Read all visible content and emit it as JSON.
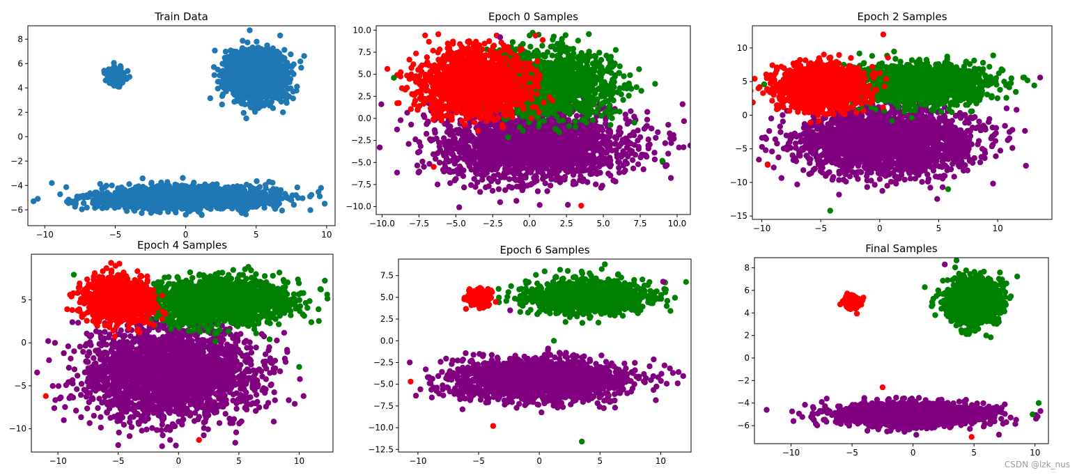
{
  "watermark": "CSDN @lzk_nus",
  "colors": {
    "train": "#1f77b4",
    "red": "#ff0000",
    "green": "#008000",
    "purple": "#800080",
    "axis": "#000000",
    "background": "#ffffff"
  },
  "chart_data": [
    {
      "type": "scatter",
      "title": "Train Data",
      "xlim": [
        -11.2,
        10.6
      ],
      "ylim": [
        -7.3,
        9.1
      ],
      "xticks": [
        -10,
        -5,
        0,
        5,
        10
      ],
      "yticks": [
        -6,
        -4,
        -2,
        0,
        2,
        4,
        6,
        8
      ],
      "series": [
        {
          "color": "#1f77b4",
          "clusters": [
            {
              "center": [
                -4.9,
                5.0
              ],
              "spread": [
                0.35,
                0.35
              ],
              "n": 120
            },
            {
              "center": [
                5.0,
                5.0
              ],
              "spread": [
                1.0,
                1.0
              ],
              "n": 1800
            },
            {
              "center": [
                0.0,
                -5.0
              ],
              "spread": [
                3.2,
                0.45
              ],
              "n": 1800
            }
          ]
        }
      ],
      "outliers": [
        [
          -10.8,
          -5.3
        ],
        [
          -10.5,
          -5.1
        ],
        [
          9.6,
          -4.2
        ],
        [
          6.7,
          8.3
        ],
        [
          4.3,
          1.5
        ],
        [
          -9.5,
          -3.8
        ],
        [
          6.9,
          2.0
        ],
        [
          0.0,
          -6.4
        ]
      ]
    },
    {
      "type": "scatter",
      "title": "Epoch 0 Samples",
      "xlim": [
        -10.4,
        10.9
      ],
      "ylim": [
        -10.9,
        10.5
      ],
      "xticks": [
        -10.0,
        -7.5,
        -5.0,
        -2.5,
        0.0,
        2.5,
        5.0,
        7.5,
        10.0
      ],
      "yticks": [
        -10.0,
        -7.5,
        -5.0,
        -2.5,
        0.0,
        2.5,
        5.0,
        7.5,
        10.0
      ],
      "series": [
        {
          "color": "#800080",
          "clusters": [
            {
              "center": [
                0.3,
                -3.0
              ],
              "spread": [
                3.2,
                2.0
              ],
              "n": 2200
            }
          ]
        },
        {
          "color": "#008000",
          "clusters": [
            {
              "center": [
                1.5,
                4.0
              ],
              "spread": [
                2.2,
                1.8
              ],
              "n": 1400
            }
          ]
        },
        {
          "color": "#ff0000",
          "clusters": [
            {
              "center": [
                -3.8,
                4.0
              ],
              "spread": [
                1.8,
                1.8
              ],
              "n": 1400
            }
          ]
        }
      ],
      "outliers": [
        [
          9.6,
          -2.8
        ],
        [
          -9.2,
          4.6
        ],
        [
          3.5,
          -9.9
        ],
        [
          -2.0,
          9.2
        ],
        [
          0.0,
          9.4
        ],
        [
          -6.5,
          -5.5
        ],
        [
          -2.0,
          -9.5
        ],
        [
          9.0,
          -4.8
        ]
      ]
    },
    {
      "type": "scatter",
      "title": "Epoch 2 Samples",
      "xlim": [
        -10.8,
        14.6
      ],
      "ylim": [
        -15.5,
        13.3
      ],
      "xticks": [
        -10,
        -5,
        0,
        5,
        10
      ],
      "yticks": [
        -15,
        -10,
        -5,
        0,
        5,
        10
      ],
      "series": [
        {
          "color": "#800080",
          "clusters": [
            {
              "center": [
                0.5,
                -4.0
              ],
              "spread": [
                3.6,
                2.4
              ],
              "n": 2400
            }
          ]
        },
        {
          "color": "#008000",
          "clusters": [
            {
              "center": [
                3.5,
                4.6
              ],
              "spread": [
                2.8,
                1.5
              ],
              "n": 1400
            }
          ]
        },
        {
          "color": "#ff0000",
          "clusters": [
            {
              "center": [
                -5.0,
                4.2
              ],
              "spread": [
                1.8,
                1.6
              ],
              "n": 1400
            }
          ]
        }
      ],
      "outliers": [
        [
          13.6,
          5.6
        ],
        [
          -4.2,
          -14.2
        ],
        [
          0.3,
          12.0
        ],
        [
          11.6,
          0.8
        ],
        [
          -9.8,
          4.6
        ],
        [
          -9.5,
          -7.4
        ],
        [
          11.0,
          -2.5
        ],
        [
          5.8,
          -11.0
        ]
      ]
    },
    {
      "type": "scatter",
      "title": "Epoch 4 Samples",
      "xlim": [
        -12.2,
        12.8
      ],
      "ylim": [
        -12.7,
        10.3
      ],
      "xticks": [
        -10,
        -5,
        0,
        5,
        10
      ],
      "yticks": [
        -10,
        -5,
        0,
        5
      ],
      "series": [
        {
          "color": "#800080",
          "clusters": [
            {
              "center": [
                -0.5,
                -3.5
              ],
              "spread": [
                3.4,
                2.6
              ],
              "n": 2600
            }
          ]
        },
        {
          "color": "#008000",
          "clusters": [
            {
              "center": [
                3.3,
                4.8
              ],
              "spread": [
                2.9,
                1.3
              ],
              "n": 1700
            }
          ]
        },
        {
          "color": "#ff0000",
          "clusters": [
            {
              "center": [
                -5.0,
                5.0
              ],
              "spread": [
                1.3,
                1.2
              ],
              "n": 1200
            }
          ]
        }
      ],
      "outliers": [
        [
          -5.0,
          -11.9
        ],
        [
          11.8,
          6.2
        ],
        [
          -11.0,
          -6.2
        ],
        [
          -10.8,
          0.2
        ],
        [
          10.0,
          -2.8
        ],
        [
          1.7,
          -11.3
        ],
        [
          -0.7,
          -11.3
        ],
        [
          10.3,
          3.3
        ]
      ]
    },
    {
      "type": "scatter",
      "title": "Epoch 6 Samples",
      "xlim": [
        -11.6,
        12.5
      ],
      "ylim": [
        -12.8,
        9.4
      ],
      "xticks": [
        -10,
        -5,
        0,
        5,
        10
      ],
      "yticks": [
        -12.5,
        -10.0,
        -7.5,
        -5.0,
        -2.5,
        0.0,
        2.5,
        5.0,
        7.5
      ],
      "series": [
        {
          "color": "#800080",
          "clusters": [
            {
              "center": [
                0.0,
                -4.5
              ],
              "spread": [
                3.4,
                1.2
              ],
              "n": 2000
            }
          ]
        },
        {
          "color": "#008000",
          "clusters": [
            {
              "center": [
                4.0,
                5.0
              ],
              "spread": [
                2.3,
                0.9
              ],
              "n": 1300
            }
          ]
        },
        {
          "color": "#ff0000",
          "clusters": [
            {
              "center": [
                -5.0,
                5.0
              ],
              "spread": [
                0.45,
                0.45
              ],
              "n": 250
            }
          ]
        }
      ],
      "outliers": [
        [
          11.4,
          -4.9
        ],
        [
          3.5,
          -11.6
        ],
        [
          -10.6,
          -4.7
        ],
        [
          -2.4,
          3.5
        ],
        [
          1.2,
          0.0
        ],
        [
          -3.8,
          -9.8
        ],
        [
          10.2,
          6.8
        ],
        [
          5.4,
          8.8
        ]
      ]
    },
    {
      "type": "scatter",
      "title": "Final Samples",
      "xlim": [
        -13.0,
        11.1
      ],
      "ylim": [
        -7.6,
        8.9
      ],
      "xticks": [
        -10,
        -5,
        0,
        5,
        10
      ],
      "yticks": [
        -6,
        -4,
        -2,
        0,
        2,
        4,
        6,
        8
      ],
      "series": [
        {
          "color": "#800080",
          "clusters": [
            {
              "center": [
                0.0,
                -5.0
              ],
              "spread": [
                3.1,
                0.5
              ],
              "n": 1800
            }
          ]
        },
        {
          "color": "#008000",
          "clusters": [
            {
              "center": [
                5.0,
                5.0
              ],
              "spread": [
                1.05,
                1.0
              ],
              "n": 1400
            }
          ]
        },
        {
          "color": "#ff0000",
          "clusters": [
            {
              "center": [
                -5.0,
                5.0
              ],
              "spread": [
                0.3,
                0.3
              ],
              "n": 200
            }
          ]
        }
      ],
      "outliers": [
        [
          -12.0,
          -4.6
        ],
        [
          10.3,
          -4.0
        ],
        [
          -2.5,
          -2.6
        ],
        [
          2.6,
          8.3
        ],
        [
          6.0,
          2.0
        ],
        [
          4.8,
          -7.0
        ],
        [
          -9.8,
          -5.6
        ],
        [
          9.8,
          -5.0
        ]
      ]
    }
  ]
}
